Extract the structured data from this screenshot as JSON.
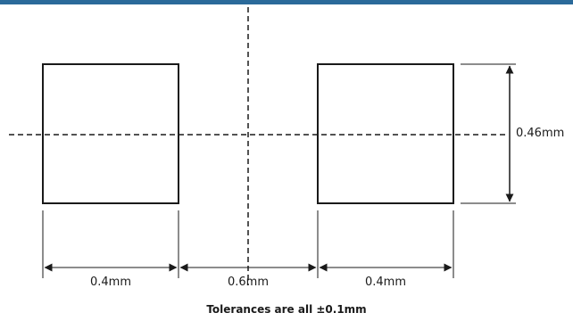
{
  "colors": {
    "header_bar": "#2b6a9a",
    "line": "#1a1a1a",
    "background": "#ffffff"
  },
  "dimensions": {
    "pad_width": "0.4mm",
    "pad_gap": "0.6mm",
    "pad_width_right": "0.4mm",
    "pad_height": "0.46mm"
  },
  "caption": "Tolerances are all ±0.1mm"
}
